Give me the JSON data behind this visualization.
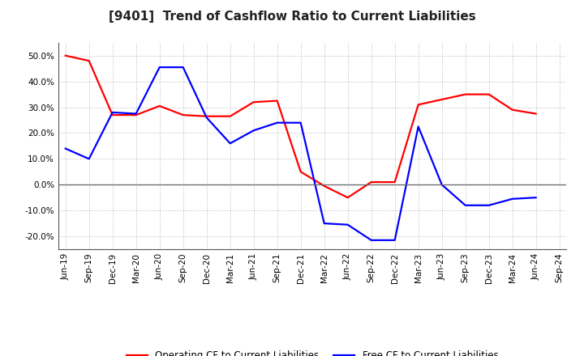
{
  "title": "[9401]  Trend of Cashflow Ratio to Current Liabilities",
  "x_labels": [
    "Jun-19",
    "Sep-19",
    "Dec-19",
    "Mar-20",
    "Jun-20",
    "Sep-20",
    "Dec-20",
    "Mar-21",
    "Jun-21",
    "Sep-21",
    "Dec-21",
    "Mar-22",
    "Jun-22",
    "Sep-22",
    "Dec-22",
    "Mar-23",
    "Jun-23",
    "Sep-23",
    "Dec-23",
    "Mar-24",
    "Jun-24",
    "Sep-24"
  ],
  "operating_cf": [
    50.0,
    48.0,
    27.0,
    27.0,
    30.5,
    27.0,
    26.5,
    26.5,
    32.0,
    32.5,
    5.0,
    -0.5,
    -5.0,
    1.0,
    1.0,
    31.0,
    33.0,
    35.0,
    35.0,
    29.0,
    27.5,
    null
  ],
  "free_cf": [
    14.0,
    10.0,
    28.0,
    27.5,
    45.5,
    45.5,
    26.0,
    16.0,
    21.0,
    24.0,
    24.0,
    -15.0,
    -15.5,
    -21.5,
    -21.5,
    22.5,
    0.0,
    -8.0,
    -8.0,
    -5.5,
    -5.0,
    null
  ],
  "operating_color": "#FF0000",
  "free_color": "#0000FF",
  "ylim": [
    -25.0,
    55.0
  ],
  "yticks": [
    -20.0,
    -10.0,
    0.0,
    10.0,
    20.0,
    30.0,
    40.0,
    50.0
  ],
  "background_color": "#FFFFFF",
  "grid_color": "#999999",
  "title_fontsize": 11,
  "axis_fontsize": 7.5,
  "legend_fontsize": 8.5
}
